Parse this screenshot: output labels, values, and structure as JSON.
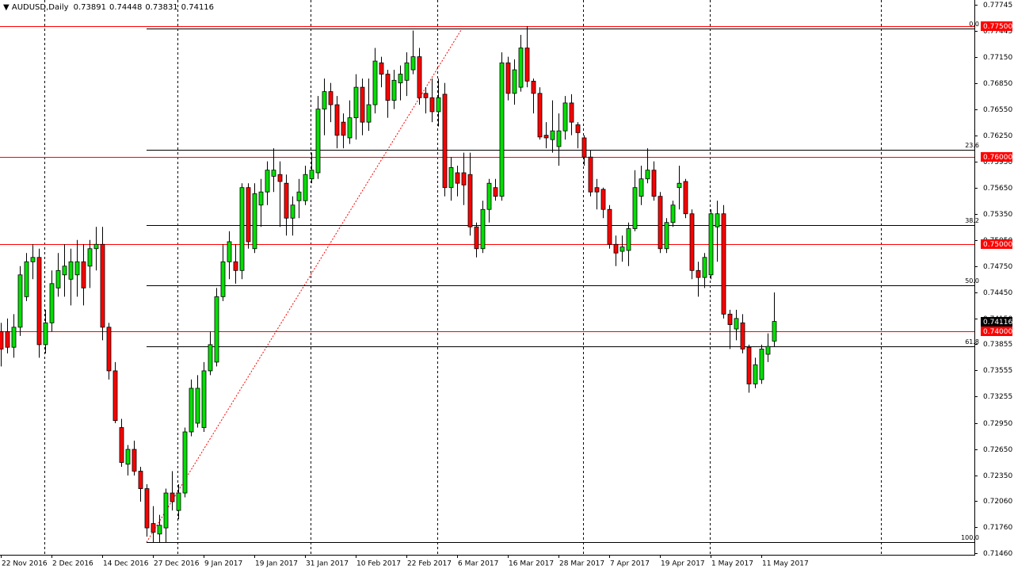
{
  "chart_data": {
    "type": "candlestick",
    "title": "AUDUSD,Daily",
    "up_color": "#00e000",
    "down_color": "#ff0000",
    "level_color": "#ff0000",
    "categories": [
      "22 Nov 2016",
      null,
      null,
      null,
      null,
      null,
      null,
      null,
      "2 Dec 2016",
      null,
      null,
      null,
      null,
      null,
      null,
      null,
      "14 Dec 2016",
      null,
      null,
      null,
      null,
      null,
      null,
      null,
      "27 Dec 2016",
      null,
      null,
      null,
      null,
      null,
      null,
      null,
      "9 Jan 2017",
      null,
      null,
      null,
      null,
      null,
      null,
      null,
      "19 Jan 2017",
      null,
      null,
      null,
      null,
      null,
      null,
      null,
      "31 Jan 2017",
      null,
      null,
      null,
      null,
      null,
      null,
      null,
      "10 Feb 2017",
      null,
      null,
      null,
      null,
      null,
      null,
      null,
      "22 Feb 2017",
      null,
      null,
      null,
      null,
      null,
      null,
      null,
      "6 Mar 2017",
      null,
      null,
      null,
      null,
      null,
      null,
      null,
      "16 Mar 2017",
      null,
      null,
      null,
      null,
      null,
      null,
      null,
      "28 Mar 2017",
      null,
      null,
      null,
      null,
      null,
      null,
      null,
      "7 Apr 2017",
      null,
      null,
      null,
      null,
      null,
      null,
      null,
      "19 Apr 2017",
      null,
      null,
      null,
      null,
      null,
      null,
      null,
      "1 May 2017",
      null,
      null,
      null,
      null,
      null,
      null,
      null,
      "11 May 2017",
      null,
      null
    ],
    "open": [
      0.74,
      0.74,
      0.7382,
      0.7405,
      0.744,
      0.748,
      0.7485,
      0.7385,
      0.741,
      0.745,
      0.7465,
      0.746,
      0.7465,
      0.748,
      0.7475,
      0.7495,
      0.75,
      0.7405,
      0.7355,
      0.729,
      0.7248,
      0.7265,
      0.724,
      0.722,
      0.718,
      0.7168,
      0.7175,
      0.7215,
      0.7195,
      0.7215,
      0.7285,
      0.7295,
      0.729,
      0.7355,
      0.7365,
      0.744,
      0.748,
      0.748,
      0.747,
      0.7565,
      0.7495,
      0.7545,
      0.756,
      0.7578,
      0.758,
      0.757,
      0.753,
      0.755,
      0.755,
      0.7575,
      0.7582,
      0.7655,
      0.7675,
      0.766,
      0.764,
      0.7622,
      0.7645,
      0.768,
      0.764,
      0.766,
      0.7708,
      0.7695,
      0.7665,
      0.7685,
      0.7688,
      0.77,
      0.7715,
      0.7673,
      0.7668,
      0.7652,
      0.7672,
      0.7565,
      0.7582,
      0.7582,
      0.758,
      0.752,
      0.7495,
      0.754,
      0.7565,
      0.7555,
      0.7708,
      0.7673,
      0.768,
      0.7725,
      0.7687,
      0.7673,
      0.7625,
      0.762,
      0.7612,
      0.763,
      0.7662,
      0.7637,
      0.7622,
      0.76,
      0.7565,
      0.7563,
      0.754,
      0.75,
      0.7492,
      0.7493,
      0.7518,
      0.7555,
      0.7575,
      0.7585,
      0.7555,
      0.7495,
      0.7525,
      0.7565,
      0.7572,
      0.7535,
      0.747,
      0.7462,
      0.7465,
      0.752,
      0.7535,
      0.742,
      0.7403,
      0.741,
      0.7382,
      0.734,
      0.7345,
      0.7374,
      0.73891
    ],
    "high": [
      0.741,
      0.7415,
      0.742,
      0.7475,
      0.749,
      0.75,
      0.7495,
      0.7425,
      0.747,
      0.749,
      0.75,
      0.7495,
      0.7505,
      0.75,
      0.7505,
      0.752,
      0.752,
      0.741,
      0.7365,
      0.73,
      0.727,
      0.7275,
      0.7245,
      0.7225,
      0.72,
      0.719,
      0.722,
      0.724,
      0.7225,
      0.729,
      0.7345,
      0.735,
      0.7365,
      0.74,
      0.745,
      0.75,
      0.7515,
      0.75,
      0.757,
      0.757,
      0.757,
      0.7575,
      0.7595,
      0.761,
      0.7595,
      0.758,
      0.7555,
      0.7575,
      0.759,
      0.7605,
      0.767,
      0.769,
      0.7685,
      0.767,
      0.765,
      0.7665,
      0.7695,
      0.769,
      0.769,
      0.7725,
      0.7715,
      0.77,
      0.77,
      0.7705,
      0.772,
      0.7745,
      0.7725,
      0.768,
      0.769,
      0.769,
      0.7685,
      0.76,
      0.759,
      0.7605,
      0.7605,
      0.7525,
      0.755,
      0.7575,
      0.7575,
      0.772,
      0.7715,
      0.7712,
      0.774,
      0.775,
      0.769,
      0.768,
      0.764,
      0.7665,
      0.765,
      0.767,
      0.7672,
      0.764,
      0.7625,
      0.7608,
      0.7575,
      0.7565,
      0.7545,
      0.751,
      0.751,
      0.7525,
      0.7585,
      0.759,
      0.761,
      0.7595,
      0.756,
      0.753,
      0.755,
      0.759,
      0.7575,
      0.754,
      0.748,
      0.749,
      0.754,
      0.755,
      0.7545,
      0.7425,
      0.7425,
      0.742,
      0.7385,
      0.737,
      0.7385,
      0.7398,
      0.74448
    ],
    "low": [
      0.736,
      0.7375,
      0.737,
      0.7395,
      0.7435,
      0.746,
      0.737,
      0.7375,
      0.74,
      0.744,
      0.744,
      0.743,
      0.744,
      0.743,
      0.745,
      0.747,
      0.739,
      0.7345,
      0.7295,
      0.7245,
      0.7235,
      0.7235,
      0.7205,
      0.7165,
      0.7158,
      0.7158,
      0.7158,
      0.7195,
      0.7185,
      0.721,
      0.728,
      0.729,
      0.7285,
      0.735,
      0.736,
      0.7435,
      0.746,
      0.7455,
      0.746,
      0.7495,
      0.749,
      0.752,
      0.7545,
      0.756,
      0.752,
      0.751,
      0.751,
      0.753,
      0.7545,
      0.757,
      0.7575,
      0.7625,
      0.764,
      0.761,
      0.761,
      0.7615,
      0.762,
      0.7625,
      0.763,
      0.765,
      0.768,
      0.7645,
      0.7655,
      0.7665,
      0.767,
      0.7695,
      0.766,
      0.765,
      0.764,
      0.7635,
      0.7555,
      0.755,
      0.7555,
      0.7545,
      0.751,
      0.7485,
      0.749,
      0.7525,
      0.755,
      0.755,
      0.7665,
      0.766,
      0.7675,
      0.768,
      0.765,
      0.762,
      0.761,
      0.7605,
      0.759,
      0.762,
      0.7625,
      0.761,
      0.759,
      0.7555,
      0.754,
      0.753,
      0.7495,
      0.7475,
      0.748,
      0.7475,
      0.7515,
      0.7545,
      0.757,
      0.755,
      0.749,
      0.749,
      0.752,
      0.754,
      0.753,
      0.746,
      0.744,
      0.745,
      0.746,
      0.748,
      0.7415,
      0.738,
      0.739,
      0.7375,
      0.733,
      0.7335,
      0.734,
      0.7365,
      0.73831
    ],
    "close": [
      0.738,
      0.7382,
      0.7405,
      0.7465,
      0.748,
      0.7485,
      0.7385,
      0.741,
      0.7455,
      0.747,
      0.7475,
      0.748,
      0.748,
      0.745,
      0.7495,
      0.75,
      0.7405,
      0.7355,
      0.7298,
      0.725,
      0.7265,
      0.724,
      0.722,
      0.7175,
      0.717,
      0.7178,
      0.7215,
      0.7205,
      0.7215,
      0.7285,
      0.7335,
      0.7335,
      0.7355,
      0.7385,
      0.744,
      0.748,
      0.7503,
      0.747,
      0.7565,
      0.7503,
      0.7558,
      0.756,
      0.7585,
      0.7585,
      0.7572,
      0.753,
      0.7545,
      0.756,
      0.758,
      0.7585,
      0.7655,
      0.7675,
      0.766,
      0.7625,
      0.7625,
      0.7645,
      0.768,
      0.764,
      0.766,
      0.771,
      0.7695,
      0.7665,
      0.7688,
      0.7695,
      0.7708,
      0.7715,
      0.7668,
      0.7668,
      0.7652,
      0.7668,
      0.7565,
      0.7588,
      0.757,
      0.7568,
      0.752,
      0.7495,
      0.754,
      0.757,
      0.7555,
      0.7708,
      0.7673,
      0.77,
      0.7725,
      0.7687,
      0.7673,
      0.7623,
      0.7622,
      0.763,
      0.763,
      0.7662,
      0.764,
      0.7628,
      0.76,
      0.756,
      0.756,
      0.754,
      0.75,
      0.749,
      0.7497,
      0.7518,
      0.7565,
      0.7575,
      0.7585,
      0.7555,
      0.7495,
      0.7525,
      0.7545,
      0.757,
      0.7535,
      0.747,
      0.7462,
      0.7485,
      0.7535,
      0.7535,
      0.742,
      0.7408,
      0.7415,
      0.738,
      0.734,
      0.7362,
      0.738,
      0.7383,
      0.74116
    ],
    "ylim": [
      0.71442,
      0.778
    ],
    "yticks": [
      0.77745,
      0.77445,
      {
        "value": 0.7715,
        "label": "0.77150"
      },
      {
        "value": 0.7685,
        "label": "0.76850"
      },
      {
        "value": 0.7655,
        "label": "0.76550"
      },
      {
        "value": 0.7625,
        "label": "0.76250"
      },
      {
        "value": 0.7595,
        "label": "0.75950"
      },
      {
        "value": 0.7565,
        "label": "0.75650"
      },
      {
        "value": 0.7535,
        "label": "0.75350"
      },
      {
        "value": 0.7505,
        "label": "0.75050"
      },
      {
        "value": 0.7475,
        "label": "0.74750"
      },
      {
        "value": 0.7445,
        "label": "0.74450"
      },
      {
        "value": 0.7415,
        "label": "0.74150"
      },
      0.73855,
      0.73555,
      0.73255,
      {
        "value": 0.7295,
        "label": "0.72950"
      },
      {
        "value": 0.7265,
        "label": "0.72650"
      },
      {
        "value": 0.7235,
        "label": "0.72350"
      },
      {
        "value": 0.7206,
        "label": "0.72060"
      },
      {
        "value": 0.7176,
        "label": "0.71760"
      },
      {
        "value": 0.7146,
        "label": "0.71460"
      }
    ],
    "levels": [
      {
        "value": 0.775,
        "label": "0.77500"
      },
      {
        "value": 0.76,
        "label": "0.76000"
      },
      {
        "value": 0.75,
        "label": "0.75000"
      },
      {
        "value": 0.74,
        "label": "0.74000"
      }
    ],
    "fibonacci": {
      "low": 0.71585,
      "high": 0.7747,
      "levels": [
        {
          "value": 0,
          "label": "0.0"
        },
        23.6,
        38.2,
        {
          "value": 50,
          "label": "50.0"
        },
        61.8,
        {
          "value": 100,
          "label": "100.0"
        }
      ]
    }
  }
}
